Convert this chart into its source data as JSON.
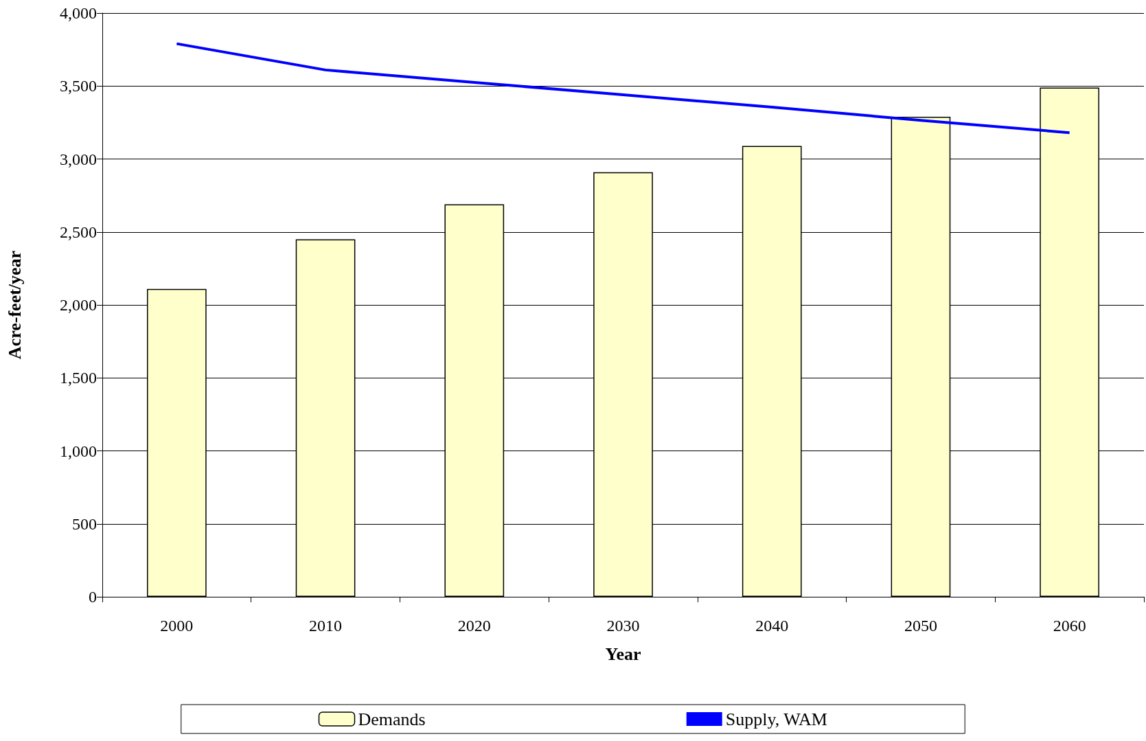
{
  "chart_data": {
    "type": "bar",
    "xlabel": "Year",
    "ylabel": "Acre-feet/year",
    "categories": [
      "2000",
      "2010",
      "2020",
      "2030",
      "2040",
      "2050",
      "2060"
    ],
    "series": [
      {
        "name": "Demands",
        "color": "#ffffcc",
        "values": [
          2110,
          2450,
          2690,
          2910,
          3090,
          3290,
          3490
        ]
      },
      {
        "name": "Supply, WAM",
        "type": "line",
        "color": "#0000ff",
        "marker": "none",
        "values": [
          3790,
          3610,
          3525,
          3440,
          3355,
          3265,
          3180
        ]
      }
    ],
    "ylim": [
      0,
      4000
    ],
    "yticks": [
      {
        "value": 0,
        "label": "0"
      },
      {
        "value": 500,
        "label": "500"
      },
      {
        "value": 1000,
        "label": "1,000"
      },
      {
        "value": 1500,
        "label": "1,500"
      },
      {
        "value": 2000,
        "label": "2,000"
      },
      {
        "value": 2500,
        "label": "2,500"
      },
      {
        "value": 3000,
        "label": "3,000"
      },
      {
        "value": 3500,
        "label": "3,500"
      },
      {
        "value": 4000,
        "label": "4,000"
      }
    ],
    "grid": "y",
    "legend": "bottom"
  }
}
